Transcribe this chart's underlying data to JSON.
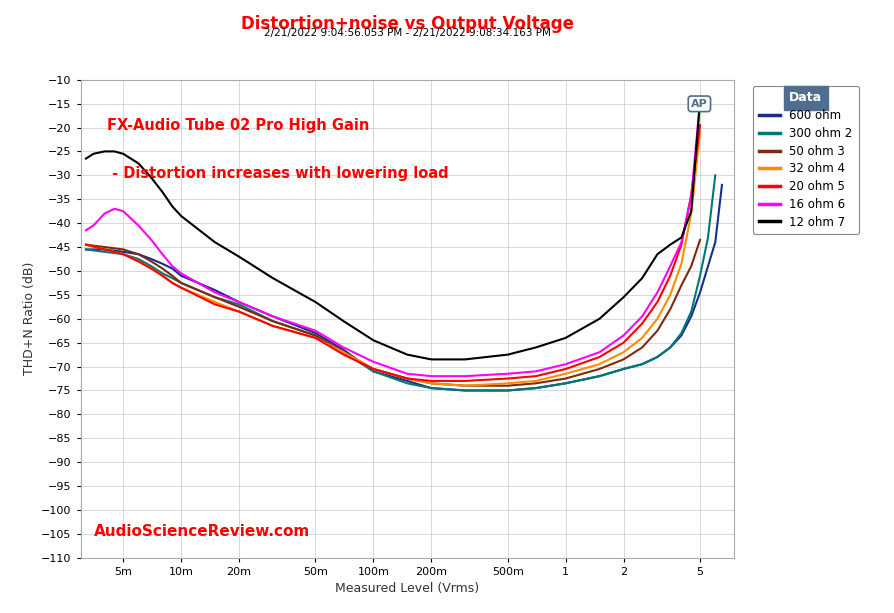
{
  "title": "Distortion+noise vs Output Voltage",
  "subtitle": "2/21/2022 9:04:56.053 PM - 2/21/2022 9:08:34.163 PM",
  "annotation_line1": "FX-Audio Tube 02 Pro High Gain",
  "annotation_line2": " - Distortion increases with lowering load",
  "watermark": "AudioScienceReview.com",
  "xlabel": "Measured Level (Vrms)",
  "ylabel": "THD+N Ratio (dB)",
  "title_color": "#FF0000",
  "subtitle_color": "#000000",
  "annotation_color": "#FF0000",
  "watermark_color": "#FF0000",
  "background_color": "#FFFFFF",
  "plot_bg_color": "#FFFFFF",
  "grid_color": "#C8C8C8",
  "ylim": [
    -110,
    -10
  ],
  "yticks": [
    -110,
    -105,
    -100,
    -95,
    -90,
    -85,
    -80,
    -75,
    -70,
    -65,
    -60,
    -55,
    -50,
    -45,
    -40,
    -35,
    -30,
    -25,
    -20,
    -15,
    -10
  ],
  "xtick_labels": [
    "5m",
    "10m",
    "20m",
    "50m",
    "100m",
    "200m",
    "500m",
    "1",
    "2",
    "5"
  ],
  "xtick_values": [
    0.005,
    0.01,
    0.02,
    0.05,
    0.1,
    0.2,
    0.5,
    1.0,
    2.0,
    5.0
  ],
  "xlim_log": [
    0.003,
    7.5
  ],
  "series": [
    {
      "label": "600 ohm",
      "color": "#1A2D8C",
      "x": [
        0.0032,
        0.004,
        0.005,
        0.006,
        0.007,
        0.008,
        0.009,
        0.01,
        0.015,
        0.02,
        0.03,
        0.05,
        0.07,
        0.1,
        0.15,
        0.2,
        0.3,
        0.5,
        0.7,
        1.0,
        1.5,
        2.0,
        2.5,
        3.0,
        3.5,
        4.0,
        4.5,
        5.0,
        6.0,
        6.5
      ],
      "y": [
        -45.5,
        -45.5,
        -46.0,
        -46.5,
        -47.5,
        -48.5,
        -49.5,
        -51.0,
        -54.0,
        -56.5,
        -59.5,
        -63.0,
        -66.5,
        -71.0,
        -73.0,
        -74.5,
        -75.0,
        -75.0,
        -74.5,
        -73.5,
        -72.0,
        -70.5,
        -69.5,
        -68.0,
        -66.0,
        -63.5,
        -59.5,
        -54.5,
        -44.0,
        -32.0
      ]
    },
    {
      "label": "300 ohm 2",
      "color": "#007878",
      "x": [
        0.0032,
        0.004,
        0.005,
        0.006,
        0.007,
        0.008,
        0.009,
        0.01,
        0.015,
        0.02,
        0.03,
        0.05,
        0.07,
        0.1,
        0.15,
        0.2,
        0.3,
        0.5,
        0.7,
        1.0,
        1.5,
        2.0,
        2.5,
        3.0,
        3.5,
        4.0,
        4.5,
        5.0,
        5.5,
        6.0
      ],
      "y": [
        -45.5,
        -46.0,
        -46.5,
        -47.5,
        -49.0,
        -50.5,
        -51.5,
        -52.5,
        -55.5,
        -57.0,
        -60.5,
        -63.5,
        -67.0,
        -71.0,
        -73.5,
        -74.5,
        -75.0,
        -75.0,
        -74.5,
        -73.5,
        -72.0,
        -70.5,
        -69.5,
        -68.0,
        -66.0,
        -63.0,
        -58.5,
        -51.0,
        -43.0,
        -30.0
      ]
    },
    {
      "label": "50 ohm 3",
      "color": "#7B2C0E",
      "x": [
        0.0032,
        0.004,
        0.005,
        0.006,
        0.007,
        0.008,
        0.009,
        0.01,
        0.015,
        0.02,
        0.03,
        0.05,
        0.07,
        0.1,
        0.15,
        0.2,
        0.3,
        0.5,
        0.7,
        1.0,
        1.5,
        2.0,
        2.5,
        3.0,
        3.5,
        4.0,
        4.5,
        5.0
      ],
      "y": [
        -44.5,
        -45.0,
        -45.5,
        -46.5,
        -48.0,
        -49.5,
        -51.0,
        -52.5,
        -55.5,
        -57.5,
        -60.5,
        -63.5,
        -67.0,
        -70.5,
        -72.5,
        -73.5,
        -74.0,
        -74.0,
        -73.5,
        -72.5,
        -70.5,
        -68.5,
        -66.0,
        -62.5,
        -58.0,
        -53.0,
        -49.0,
        -43.5
      ]
    },
    {
      "label": "32 ohm 4",
      "color": "#FF8C00",
      "x": [
        0.0032,
        0.004,
        0.005,
        0.006,
        0.007,
        0.008,
        0.009,
        0.01,
        0.015,
        0.02,
        0.03,
        0.05,
        0.07,
        0.1,
        0.15,
        0.2,
        0.3,
        0.5,
        0.7,
        1.0,
        1.5,
        2.0,
        2.5,
        3.0,
        3.5,
        4.0,
        4.5,
        5.0
      ],
      "y": [
        -44.5,
        -45.5,
        -46.5,
        -48.0,
        -49.5,
        -51.0,
        -52.5,
        -53.5,
        -56.5,
        -58.5,
        -61.5,
        -64.0,
        -67.0,
        -70.5,
        -72.5,
        -73.5,
        -74.0,
        -73.5,
        -73.0,
        -71.5,
        -69.5,
        -67.0,
        -64.0,
        -60.0,
        -55.0,
        -48.5,
        -38.0,
        -21.0
      ]
    },
    {
      "label": "20 ohm 5",
      "color": "#FF0000",
      "x": [
        0.0032,
        0.004,
        0.005,
        0.006,
        0.007,
        0.008,
        0.009,
        0.01,
        0.015,
        0.02,
        0.03,
        0.05,
        0.07,
        0.1,
        0.15,
        0.2,
        0.3,
        0.5,
        0.7,
        1.0,
        1.5,
        2.0,
        2.5,
        3.0,
        3.5,
        4.0,
        4.5,
        5.0
      ],
      "y": [
        -44.5,
        -45.5,
        -46.5,
        -48.0,
        -49.5,
        -51.0,
        -52.5,
        -53.5,
        -57.0,
        -58.5,
        -61.5,
        -64.0,
        -67.5,
        -70.5,
        -72.5,
        -73.0,
        -73.0,
        -72.5,
        -72.0,
        -70.5,
        -68.0,
        -65.0,
        -61.0,
        -56.5,
        -51.0,
        -44.5,
        -34.0,
        -19.5
      ]
    },
    {
      "label": "16 ohm 6",
      "color": "#FF00FF",
      "x": [
        0.0032,
        0.0035,
        0.004,
        0.0045,
        0.005,
        0.006,
        0.007,
        0.008,
        0.009,
        0.01,
        0.015,
        0.02,
        0.03,
        0.05,
        0.07,
        0.1,
        0.15,
        0.2,
        0.3,
        0.5,
        0.7,
        1.0,
        1.5,
        2.0,
        2.5,
        3.0,
        3.5,
        4.0,
        4.5,
        5.0
      ],
      "y": [
        -41.5,
        -40.5,
        -38.0,
        -37.0,
        -37.5,
        -40.5,
        -43.5,
        -46.5,
        -49.0,
        -50.5,
        -54.5,
        -56.5,
        -59.5,
        -62.5,
        -66.0,
        -69.0,
        -71.5,
        -72.0,
        -72.0,
        -71.5,
        -71.0,
        -69.5,
        -67.0,
        -63.5,
        -59.5,
        -54.5,
        -49.0,
        -44.0,
        -34.5,
        -14.5
      ]
    },
    {
      "label": "12 ohm 7",
      "color": "#000000",
      "x": [
        0.0032,
        0.0035,
        0.004,
        0.0045,
        0.005,
        0.006,
        0.007,
        0.008,
        0.009,
        0.01,
        0.015,
        0.02,
        0.03,
        0.05,
        0.07,
        0.1,
        0.15,
        0.2,
        0.3,
        0.5,
        0.7,
        1.0,
        1.5,
        2.0,
        2.5,
        3.0,
        3.5,
        4.0,
        4.5,
        5.0
      ],
      "y": [
        -26.5,
        -25.5,
        -25.0,
        -25.0,
        -25.5,
        -27.5,
        -30.5,
        -33.5,
        -36.5,
        -38.5,
        -44.0,
        -47.0,
        -51.5,
        -56.5,
        -60.5,
        -64.5,
        -67.5,
        -68.5,
        -68.5,
        -67.5,
        -66.0,
        -64.0,
        -60.0,
        -55.5,
        -51.5,
        -46.5,
        -44.5,
        -43.0,
        -37.5,
        -14.5
      ]
    }
  ],
  "legend_title": "Data",
  "legend_title_color": "#FFFFFF",
  "legend_bg_color": "#4F6D8F",
  "ap_logo_color": "#4F6D8F"
}
